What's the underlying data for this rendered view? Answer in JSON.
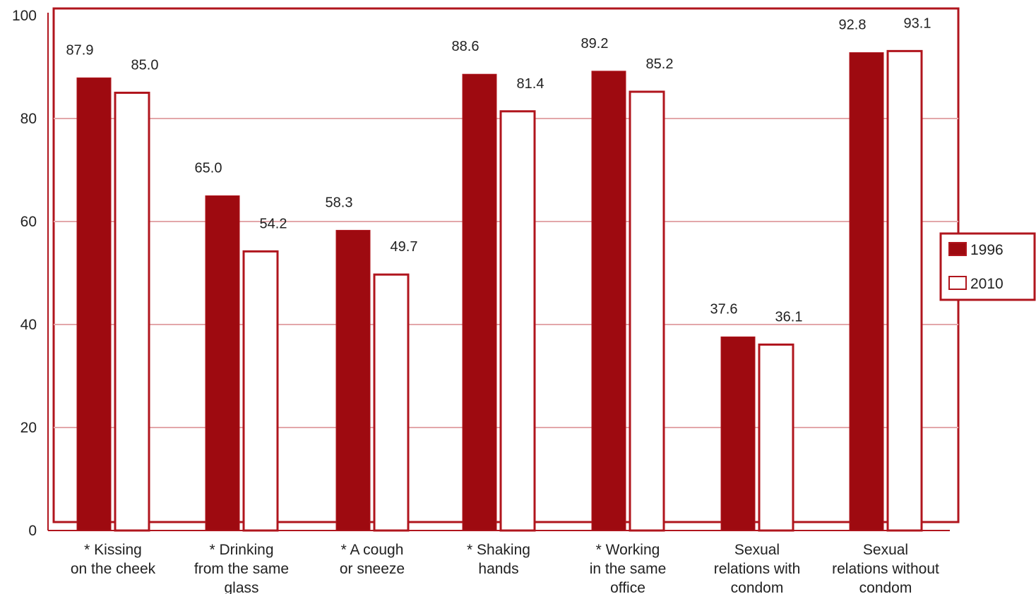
{
  "colors": {
    "series_1996_fill": "#9e0a10",
    "series_2010_fill": "#ffffff",
    "accent": "#b0151d",
    "grid": "#e3a7aa"
  },
  "chart_data": {
    "type": "bar",
    "title": "",
    "xlabel": "",
    "ylabel": "",
    "ylim": [
      0,
      100
    ],
    "yticks": [
      0,
      20,
      40,
      60,
      80,
      100
    ],
    "grid": true,
    "legend_position": "right",
    "categories": [
      [
        "* Kissing",
        "on the cheek"
      ],
      [
        "* Drinking",
        "from the same",
        "glass"
      ],
      [
        "* A cough",
        "or sneeze"
      ],
      [
        "* Shaking",
        "hands"
      ],
      [
        "* Working",
        "in the same",
        "office"
      ],
      [
        "Sexual",
        "relations with",
        "condom"
      ],
      [
        "Sexual",
        "relations without",
        "condom"
      ]
    ],
    "series": [
      {
        "name": "1996",
        "values": [
          87.9,
          65.0,
          58.3,
          88.6,
          89.2,
          37.6,
          92.8
        ],
        "labels": [
          "87.9",
          "65.0",
          "58.3",
          "88.6",
          "89.2",
          "37.6",
          "92.8"
        ]
      },
      {
        "name": "2010",
        "values": [
          85.0,
          54.2,
          49.7,
          81.4,
          85.2,
          36.1,
          93.1
        ],
        "labels": [
          "85.0",
          "54.2",
          "49.7",
          "81.4",
          "85.2",
          "36.1",
          "93.1"
        ]
      }
    ]
  }
}
